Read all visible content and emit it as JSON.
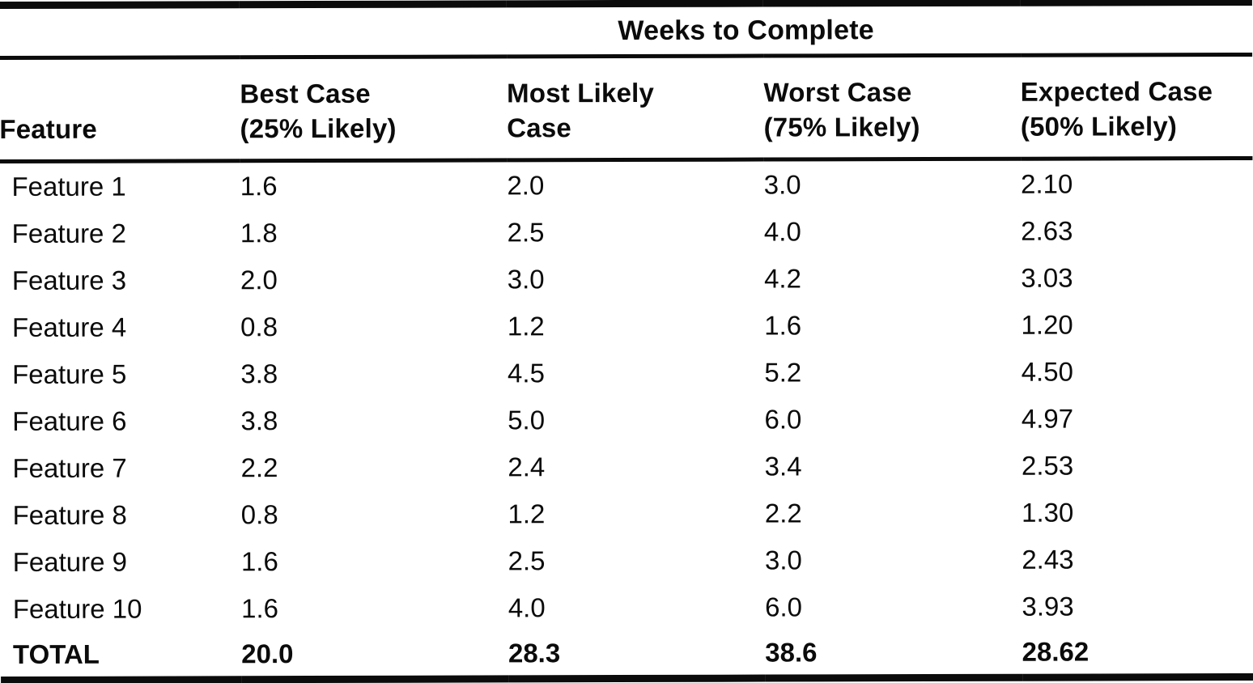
{
  "page": {
    "background_color": "#ffffff",
    "ink_color": "#0b0b0b"
  },
  "table": {
    "spanner_title": "Weeks to Complete",
    "columns": [
      "Feature",
      "Best Case\n(25% Likely)",
      "Most Likely\nCase",
      "Worst Case\n(75% Likely)",
      "Expected Case\n(50% Likely)"
    ],
    "rows": [
      {
        "feature": "Feature 1",
        "values": [
          "1.6",
          "2.0",
          "3.0",
          "2.10"
        ]
      },
      {
        "feature": "Feature 2",
        "values": [
          "1.8",
          "2.5",
          "4.0",
          "2.63"
        ]
      },
      {
        "feature": "Feature 3",
        "values": [
          "2.0",
          "3.0",
          "4.2",
          "3.03"
        ]
      },
      {
        "feature": "Feature 4",
        "values": [
          "0.8",
          "1.2",
          "1.6",
          "1.20"
        ]
      },
      {
        "feature": "Feature 5",
        "values": [
          "3.8",
          "4.5",
          "5.2",
          "4.50"
        ]
      },
      {
        "feature": "Feature 6",
        "values": [
          "3.8",
          "5.0",
          "6.0",
          "4.97"
        ]
      },
      {
        "feature": "Feature 7",
        "values": [
          "2.2",
          "2.4",
          "3.4",
          "2.53"
        ]
      },
      {
        "feature": "Feature 8",
        "values": [
          "0.8",
          "1.2",
          "2.2",
          "1.30"
        ]
      },
      {
        "feature": "Feature 9",
        "values": [
          "1.6",
          "2.5",
          "3.0",
          "2.43"
        ]
      },
      {
        "feature": "Feature 10",
        "values": [
          "1.6",
          "4.0",
          "6.0",
          "3.93"
        ]
      }
    ],
    "total_row": {
      "label": "TOTAL",
      "values": [
        "20.0",
        "28.3",
        "38.6",
        "28.62"
      ]
    }
  }
}
